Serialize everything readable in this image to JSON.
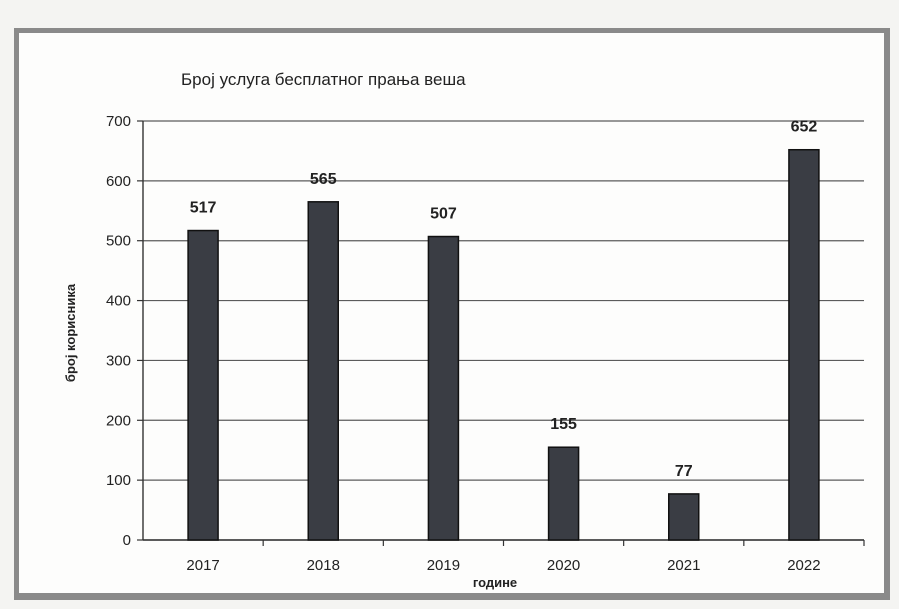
{
  "chart_data": {
    "type": "bar",
    "title": "Број услуга бесплатног прања веша",
    "xlabel": "године",
    "ylabel": "број корисника",
    "categories": [
      "2017",
      "2018",
      "2019",
      "2020",
      "2021",
      "2022"
    ],
    "values": [
      517,
      565,
      507,
      155,
      77,
      652
    ],
    "data_labels": [
      "517",
      "565",
      "507",
      "155",
      "77",
      "652"
    ],
    "ylim": [
      0,
      700
    ],
    "yticks": [
      0,
      100,
      200,
      300,
      400,
      500,
      600,
      700
    ],
    "ytick_labels": [
      "0",
      "100",
      "200",
      "300",
      "400",
      "500",
      "600",
      "700"
    ],
    "grid": true,
    "legend": "none",
    "colors": {
      "bar": "#3a3d44",
      "bar_edge": "#111111",
      "grid": "#5c5c5c",
      "frame": "#8a8a8a"
    }
  }
}
